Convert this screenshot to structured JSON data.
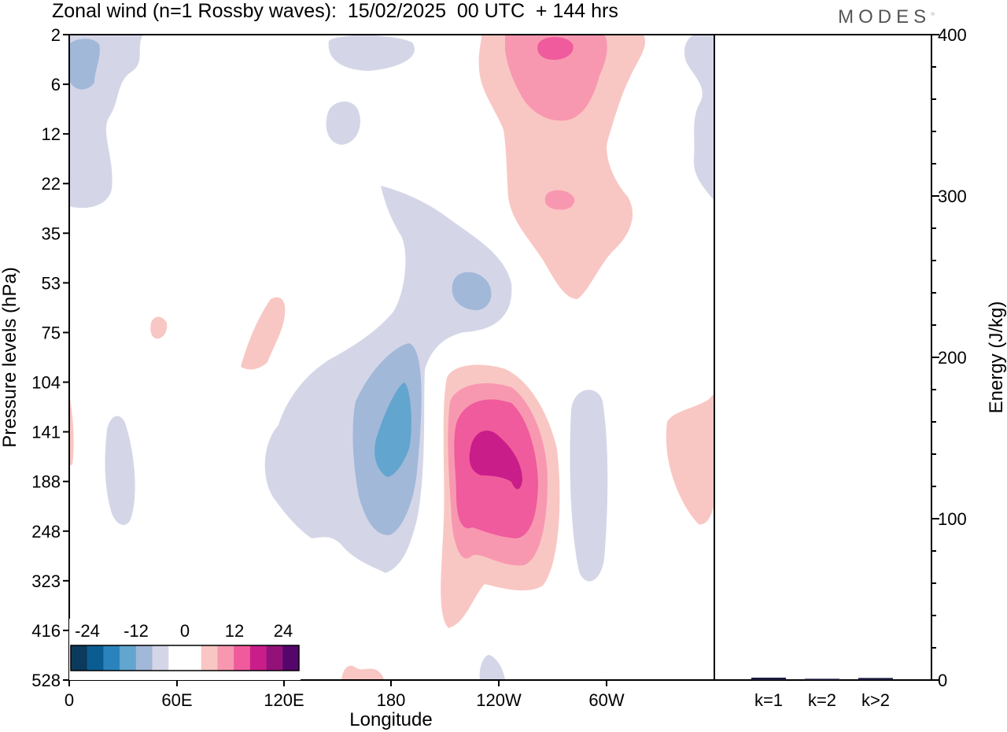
{
  "title": "Zonal wind (n=1 Rossby waves):  15/02/2025  00 UTC  + 144 hrs",
  "logo": "MODES",
  "colors": {
    "neg": [
      "#0c3a5c",
      "#0b5d91",
      "#2a83bd",
      "#62a5cf",
      "#a2b8d9",
      "#d4d6e8"
    ],
    "zero": "#ffffff",
    "pos": [
      "#f9c7c3",
      "#f898b0",
      "#ef5b9c",
      "#c91d8a",
      "#93127a",
      "#55066b"
    ]
  },
  "chart_data": [
    {
      "type": "heatmap",
      "title": "Zonal wind (n=1 Rossby waves):  15/02/2025  00 UTC  + 144 hrs",
      "xlabel": "Longitude",
      "ylabel": "Pressure levels (hPa)",
      "x_ticks": [
        "0",
        "60E",
        "120E",
        "180",
        "120W",
        "60W"
      ],
      "x_range": [
        0,
        360
      ],
      "y_ticks": [
        "2",
        "6",
        "12",
        "22",
        "35",
        "53",
        "75",
        "104",
        "141",
        "188",
        "248",
        "323",
        "416",
        "528"
      ],
      "colorbar_labels": [
        "-24",
        "-12",
        "0",
        "12",
        "24"
      ],
      "colorbar_levels": [
        -30,
        -24,
        -18,
        -12,
        -6,
        -3,
        3,
        6,
        12,
        18,
        24,
        30
      ],
      "features": [
        {
          "name": "negative anomaly near 180",
          "lon": 180,
          "level_hpa": 141,
          "min_value": -18
        },
        {
          "name": "positive anomaly near 120W",
          "lon": 240,
          "level_hpa": 160,
          "max_value": 24
        },
        {
          "name": "positive anomaly upper levels near 100W",
          "lon": 265,
          "level_hpa": 3,
          "max_value": 18
        },
        {
          "name": "negative anomaly near 150W",
          "lon": 210,
          "level_hpa": 53,
          "min_value": -12
        }
      ]
    },
    {
      "type": "bar",
      "ylabel": "Energy (J/kg)",
      "categories": [
        "k=1",
        "k=2",
        "k>2"
      ],
      "values": [
        1,
        0.3,
        0.8
      ],
      "ylim": [
        0,
        400
      ],
      "y_ticks": [
        "0",
        "100",
        "200",
        "300",
        "400"
      ]
    }
  ]
}
